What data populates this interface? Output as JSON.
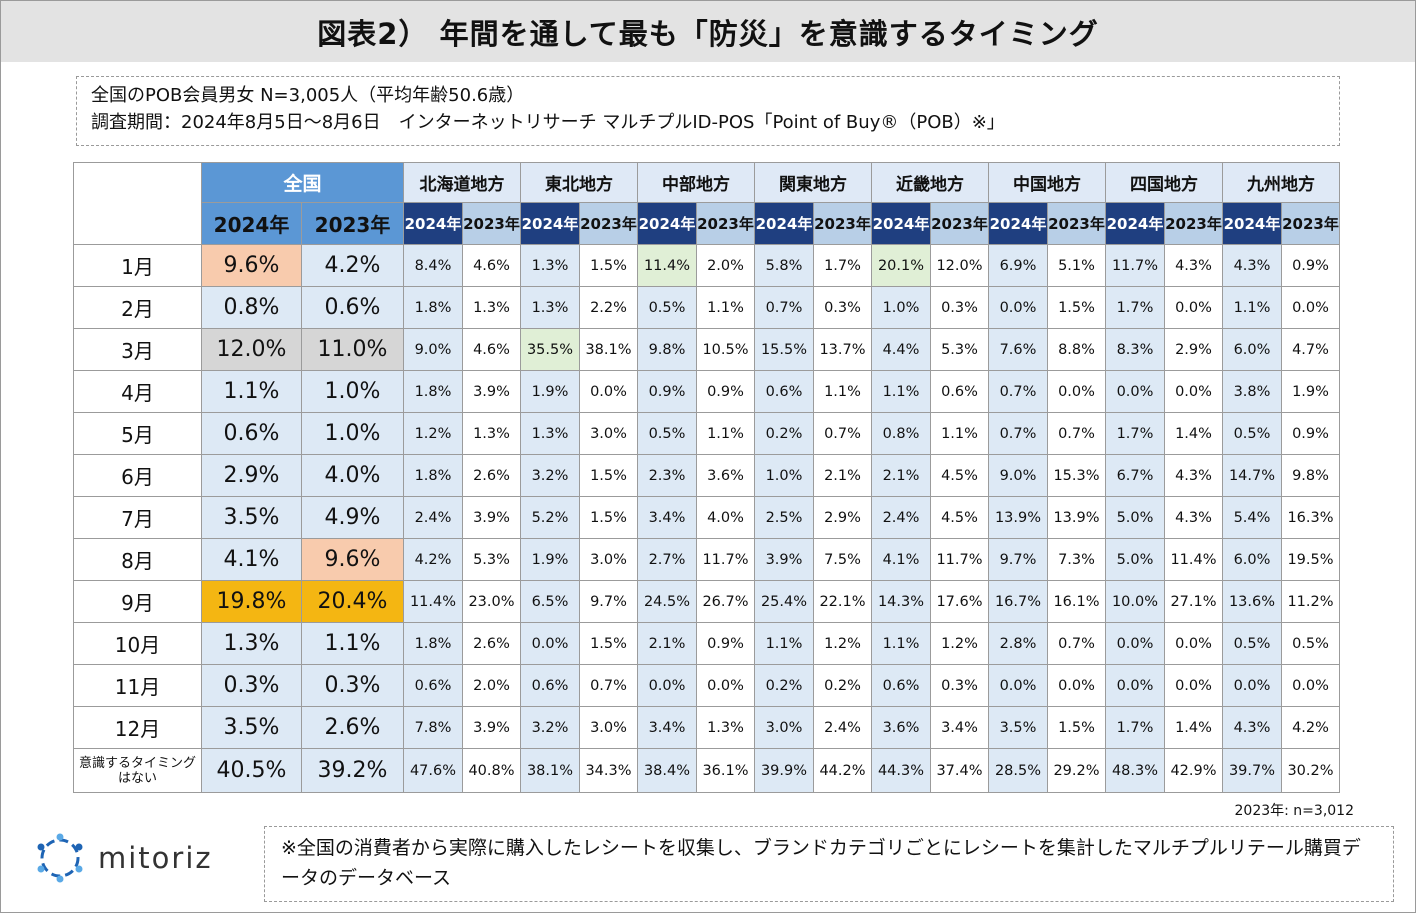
{
  "title": "図表2） 年間を通して最も「防災」を意識するタイミング",
  "info": {
    "line1": "全国のPOB会員男女 N=3,005人（平均年齢50.6歳）",
    "line2": "調査期間：2024年8月5日～8月6日　インターネットリサーチ マルチプルID-POS「Point of Buy®（POB）※」"
  },
  "colors": {
    "national_header": "#5b97d5",
    "year_dark": "#1f3f80",
    "year_light": "#b8cfe7",
    "cell_blue": "#dde9f5",
    "peach": "#f8cbad",
    "gray": "#d6d6d6",
    "gold": "#f4b612",
    "green": "#e0efd6"
  },
  "chart_data": {
    "type": "table",
    "title": "年間を通して最も「防災」を意識するタイミング",
    "national_label": "全国",
    "national_years": [
      "2024年",
      "2023年"
    ],
    "regions": [
      "北海道地方",
      "東北地方",
      "中部地方",
      "関東地方",
      "近畿地方",
      "中国地方",
      "四国地方",
      "九州地方"
    ],
    "region_year_label_2024": "2024年",
    "region_year_label_2023": "2023年",
    "rows": [
      {
        "label": "1月",
        "values": [
          "9.6%",
          "4.2%",
          "8.4%",
          "4.6%",
          "1.3%",
          "1.5%",
          "11.4%",
          "2.0%",
          "5.8%",
          "1.7%",
          "20.1%",
          "12.0%",
          "6.9%",
          "5.1%",
          "11.7%",
          "4.3%",
          "4.3%",
          "0.9%"
        ],
        "hl": [
          "peach",
          "",
          "",
          "",
          "",
          "",
          "green",
          "",
          "",
          "",
          "green",
          "",
          "",
          "",
          "",
          "",
          "",
          ""
        ]
      },
      {
        "label": "2月",
        "values": [
          "0.8%",
          "0.6%",
          "1.8%",
          "1.3%",
          "1.3%",
          "2.2%",
          "0.5%",
          "1.1%",
          "0.7%",
          "0.3%",
          "1.0%",
          "0.3%",
          "0.0%",
          "1.5%",
          "1.7%",
          "0.0%",
          "1.1%",
          "0.0%"
        ],
        "hl": []
      },
      {
        "label": "3月",
        "values": [
          "12.0%",
          "11.0%",
          "9.0%",
          "4.6%",
          "35.5%",
          "38.1%",
          "9.8%",
          "10.5%",
          "15.5%",
          "13.7%",
          "4.4%",
          "5.3%",
          "7.6%",
          "8.8%",
          "8.3%",
          "2.9%",
          "6.0%",
          "4.7%"
        ],
        "hl": [
          "gray",
          "gray",
          "",
          "",
          "green",
          "",
          "",
          "",
          "",
          "",
          "",
          "",
          "",
          "",
          "",
          "",
          "",
          ""
        ]
      },
      {
        "label": "4月",
        "values": [
          "1.1%",
          "1.0%",
          "1.8%",
          "3.9%",
          "1.9%",
          "0.0%",
          "0.9%",
          "0.9%",
          "0.6%",
          "1.1%",
          "1.1%",
          "0.6%",
          "0.7%",
          "0.0%",
          "0.0%",
          "0.0%",
          "3.8%",
          "1.9%"
        ],
        "hl": []
      },
      {
        "label": "5月",
        "values": [
          "0.6%",
          "1.0%",
          "1.2%",
          "1.3%",
          "1.3%",
          "3.0%",
          "0.5%",
          "1.1%",
          "0.2%",
          "0.7%",
          "0.8%",
          "1.1%",
          "0.7%",
          "0.7%",
          "1.7%",
          "1.4%",
          "0.5%",
          "0.9%"
        ],
        "hl": []
      },
      {
        "label": "6月",
        "values": [
          "2.9%",
          "4.0%",
          "1.8%",
          "2.6%",
          "3.2%",
          "1.5%",
          "2.3%",
          "3.6%",
          "1.0%",
          "2.1%",
          "2.1%",
          "4.5%",
          "9.0%",
          "15.3%",
          "6.7%",
          "4.3%",
          "14.7%",
          "9.8%"
        ],
        "hl": []
      },
      {
        "label": "7月",
        "values": [
          "3.5%",
          "4.9%",
          "2.4%",
          "3.9%",
          "5.2%",
          "1.5%",
          "3.4%",
          "4.0%",
          "2.5%",
          "2.9%",
          "2.4%",
          "4.5%",
          "13.9%",
          "13.9%",
          "5.0%",
          "4.3%",
          "5.4%",
          "16.3%"
        ],
        "hl": []
      },
      {
        "label": "8月",
        "values": [
          "4.1%",
          "9.6%",
          "4.2%",
          "5.3%",
          "1.9%",
          "3.0%",
          "2.7%",
          "11.7%",
          "3.9%",
          "7.5%",
          "4.1%",
          "11.7%",
          "9.7%",
          "7.3%",
          "5.0%",
          "11.4%",
          "6.0%",
          "19.5%"
        ],
        "hl": [
          "",
          "peach"
        ]
      },
      {
        "label": "9月",
        "values": [
          "19.8%",
          "20.4%",
          "11.4%",
          "23.0%",
          "6.5%",
          "9.7%",
          "24.5%",
          "26.7%",
          "25.4%",
          "22.1%",
          "14.3%",
          "17.6%",
          "16.7%",
          "16.1%",
          "10.0%",
          "27.1%",
          "13.6%",
          "11.2%"
        ],
        "hl": [
          "gold",
          "gold"
        ]
      },
      {
        "label": "10月",
        "values": [
          "1.3%",
          "1.1%",
          "1.8%",
          "2.6%",
          "0.0%",
          "1.5%",
          "2.1%",
          "0.9%",
          "1.1%",
          "1.2%",
          "1.1%",
          "1.2%",
          "2.8%",
          "0.7%",
          "0.0%",
          "0.0%",
          "0.5%",
          "0.5%"
        ],
        "hl": []
      },
      {
        "label": "11月",
        "values": [
          "0.3%",
          "0.3%",
          "0.6%",
          "2.0%",
          "0.6%",
          "0.7%",
          "0.0%",
          "0.0%",
          "0.2%",
          "0.2%",
          "0.6%",
          "0.3%",
          "0.0%",
          "0.0%",
          "0.0%",
          "0.0%",
          "0.0%",
          "0.0%"
        ],
        "hl": []
      },
      {
        "label": "12月",
        "values": [
          "3.5%",
          "2.6%",
          "7.8%",
          "3.9%",
          "3.2%",
          "3.0%",
          "3.4%",
          "1.3%",
          "3.0%",
          "2.4%",
          "3.6%",
          "3.4%",
          "3.5%",
          "1.5%",
          "1.7%",
          "1.4%",
          "4.3%",
          "4.2%"
        ],
        "hl": []
      },
      {
        "label": "意識するタイミングはない",
        "values": [
          "40.5%",
          "39.2%",
          "47.6%",
          "40.8%",
          "38.1%",
          "34.3%",
          "38.4%",
          "36.1%",
          "39.9%",
          "44.2%",
          "44.3%",
          "37.4%",
          "28.5%",
          "29.2%",
          "48.3%",
          "42.9%",
          "39.7%",
          "30.2%"
        ],
        "hl": [],
        "small": true
      }
    ]
  },
  "sample_note": "2023年: n=3,012",
  "logo_text": "mitoriz",
  "note": "※全国の消費者から実際に購入したレシートを収集し、ブランドカテゴリごとにレシートを集計したマルチプルリテール購買データのデータベース"
}
